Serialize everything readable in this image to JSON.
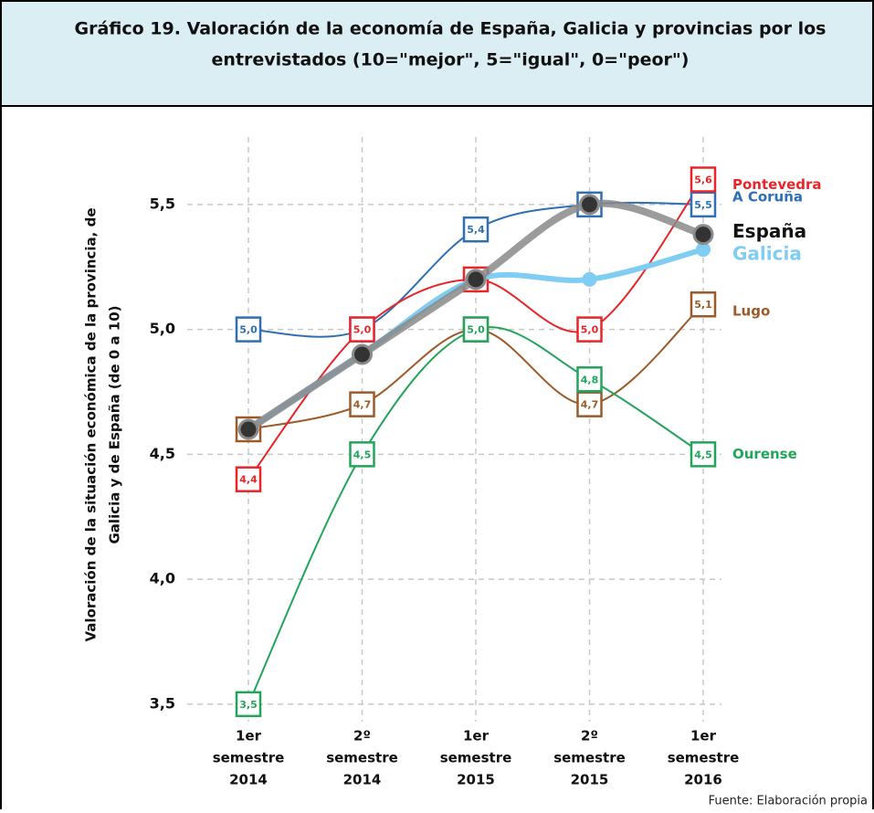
{
  "chart_data": {
    "type": "line",
    "title": [
      "Gráfico 19. Valoración de la economía de España, Galicia y provincias por los",
      "entrevistados (10=\"mejor\", 5=\"igual\", 0=\"peor\")"
    ],
    "y_label": [
      "Valoración de la situación económica de la provincia, de",
      "Galicia y de España (de 0 a 10)"
    ],
    "source": "Fuente: Elaboración propia",
    "categories": [
      [
        "1er",
        "semestre",
        "2014"
      ],
      [
        "2º",
        "semestre",
        "2014"
      ],
      [
        "1er",
        "semestre",
        "2015"
      ],
      [
        "2º",
        "semestre",
        "2015"
      ],
      [
        "1er",
        "semestre",
        "2016"
      ]
    ],
    "ylim": [
      3.43,
      5.77
    ],
    "yticks": [
      {
        "value": 3.5,
        "label": "3,5"
      },
      {
        "value": 4.0,
        "label": "4,0"
      },
      {
        "value": 4.5,
        "label": "4,5"
      },
      {
        "value": 5.0,
        "label": "5,0"
      },
      {
        "value": 5.5,
        "label": "5,5"
      }
    ],
    "grid": true,
    "series": [
      {
        "name": "Lugo",
        "color": "#9c5a2a",
        "marker": "square",
        "values": [
          4.6,
          4.7,
          5.0,
          4.7,
          5.1
        ],
        "value_labels": [
          null,
          "4,7",
          null,
          "4,7",
          "5,1"
        ]
      },
      {
        "name": "Ourense",
        "color": "#22a55a",
        "marker": "square",
        "values": [
          3.5,
          4.5,
          5.0,
          4.8,
          4.5
        ],
        "value_labels": [
          "3,5",
          "4,5",
          "5,0",
          "4,8",
          "4,5"
        ]
      },
      {
        "name": "A Coruña",
        "color": "#2f6fb3",
        "marker": "square",
        "values": [
          5.0,
          5.0,
          5.4,
          5.5,
          5.5
        ],
        "value_labels": [
          "5,0",
          null,
          "5,4",
          null,
          "5,5"
        ]
      },
      {
        "name": "Pontevedra",
        "color": "#e8262a",
        "marker": "square",
        "values": [
          4.4,
          5.0,
          5.2,
          5.0,
          5.6
        ],
        "value_labels": [
          "4,4",
          "5,0",
          null,
          "5,0",
          "5,6"
        ]
      },
      {
        "name": "Galicia",
        "color": "#7fcdf2",
        "marker": "circle",
        "values": [
          4.6,
          4.9,
          5.2,
          5.2,
          5.32
        ]
      },
      {
        "name": "España",
        "color": "#8a8a8a",
        "marker": "dot",
        "values": [
          4.6,
          4.9,
          5.2,
          5.5,
          5.38
        ]
      }
    ]
  }
}
